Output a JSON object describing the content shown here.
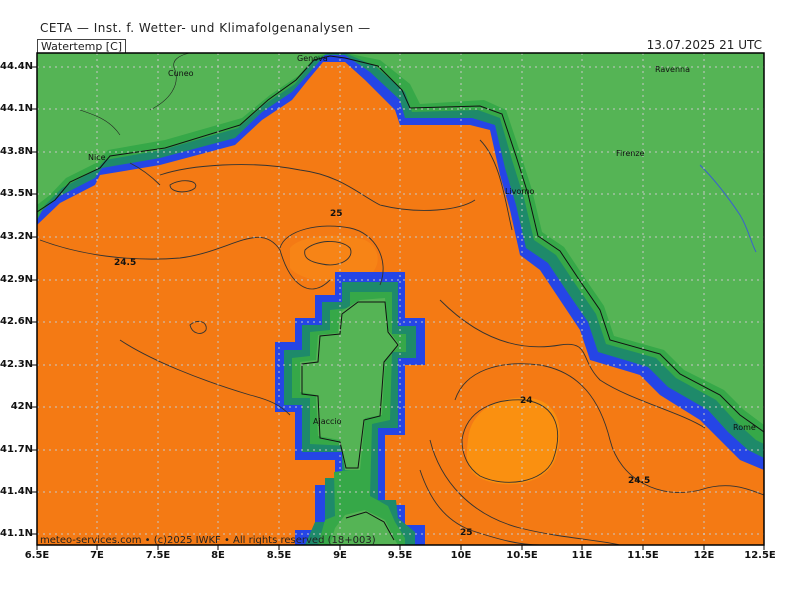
{
  "header": {
    "agency": "CETA — Inst. f. Wetter- und Klimafolgenanalysen —",
    "parameter": "Watertemp [C]",
    "valid_time": "13.07.2025 21 UTC"
  },
  "footer": {
    "credit": "meteo-services.com • (c)2025 IWKF • All rights reserved (18+003)"
  },
  "axes": {
    "lon_labels": [
      "6.5E",
      "7E",
      "7.5E",
      "8E",
      "8.5E",
      "9E",
      "9.5E",
      "10E",
      "10.5E",
      "11E",
      "11.5E",
      "12E",
      "12.5E"
    ],
    "lat_labels": [
      "44.4N",
      "44.1N",
      "43.8N",
      "43.5N",
      "43.2N",
      "42.9N",
      "42.6N",
      "42.3N",
      "42N",
      "41.7N",
      "41.4N",
      "41.1N"
    ],
    "lon_range": [
      6.5,
      12.5
    ],
    "lat_range": [
      41.02,
      44.53
    ],
    "grid": "dotted"
  },
  "cities": [
    "Genova",
    "Cuneo",
    "Ravenna",
    "Nice",
    "Firenze",
    "Livorno",
    "Ajaccio",
    "Rome"
  ],
  "isotherm_labels": [
    "25",
    "24.5",
    "24",
    "24.5",
    "25"
  ],
  "colors": {
    "sea_warm": "#f47a14",
    "sea_warmer": "#fa9010",
    "coast_blue": "#2545e6",
    "coast_teal": "#1e8a6a",
    "coast_green": "#36a848",
    "land": "#55b455",
    "contour": "#333333"
  }
}
